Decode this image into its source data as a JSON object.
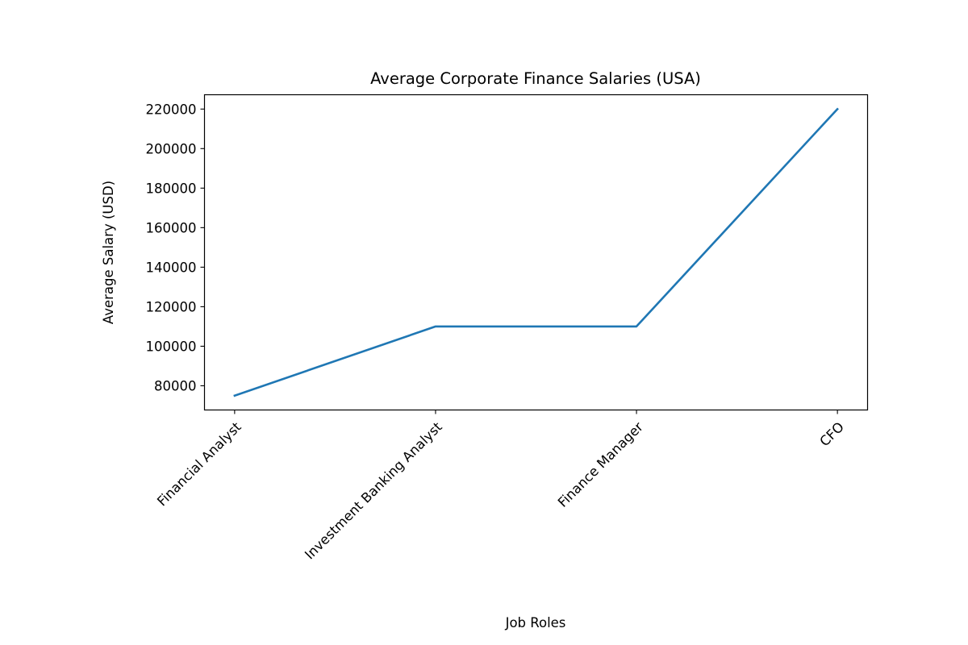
{
  "chart_data": {
    "type": "line",
    "title": "Average Corporate Finance Salaries (USA)",
    "xlabel": "Job Roles",
    "ylabel": "Average Salary (USD)",
    "categories": [
      "Financial Analyst",
      "Investment Banking Analyst",
      "Finance Manager",
      "CFO"
    ],
    "series": [
      {
        "name": "Average Salary",
        "values": [
          75000,
          110000,
          110000,
          220000
        ],
        "color": "#1f77b4"
      }
    ],
    "ylim": [
      67750,
      227250
    ],
    "yticks": [
      80000,
      100000,
      120000,
      140000,
      160000,
      180000,
      200000,
      220000
    ],
    "ytick_labels": [
      "80000",
      "100000",
      "120000",
      "140000",
      "160000",
      "180000",
      "200000",
      "220000"
    ],
    "xtick_rotation": 45,
    "grid": false,
    "legend": null
  }
}
